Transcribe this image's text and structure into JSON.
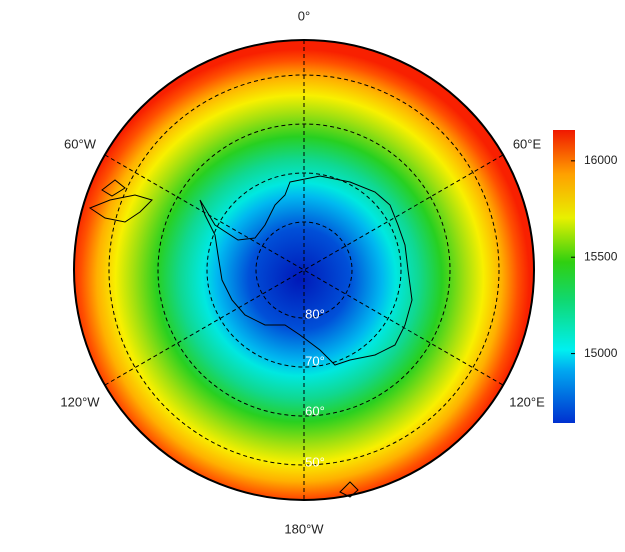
{
  "map": {
    "longitude_labels": [
      "0°",
      "60°E",
      "120°E",
      "180°W",
      "120°W",
      "60°W"
    ],
    "latitude_labels": [
      "80°",
      "70°",
      "60°",
      "50°"
    ]
  },
  "colorbar": {
    "lim": [
      14640,
      16160
    ],
    "ticks": [
      15000,
      15500,
      16000
    ]
  }
}
